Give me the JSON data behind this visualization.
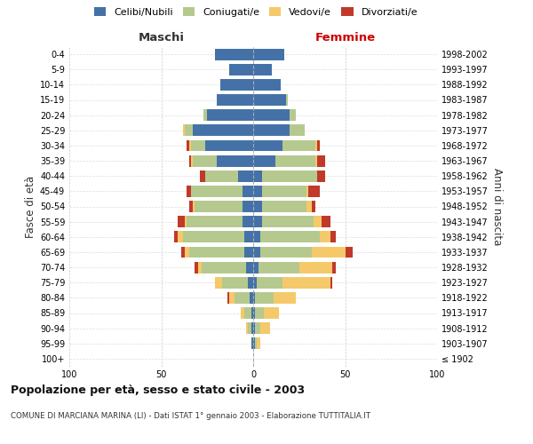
{
  "age_groups": [
    "100+",
    "95-99",
    "90-94",
    "85-89",
    "80-84",
    "75-79",
    "70-74",
    "65-69",
    "60-64",
    "55-59",
    "50-54",
    "45-49",
    "40-44",
    "35-39",
    "30-34",
    "25-29",
    "20-24",
    "15-19",
    "10-14",
    "5-9",
    "0-4"
  ],
  "birth_years": [
    "≤ 1902",
    "1903-1907",
    "1908-1912",
    "1913-1917",
    "1918-1922",
    "1923-1927",
    "1928-1932",
    "1933-1937",
    "1938-1942",
    "1943-1947",
    "1948-1952",
    "1953-1957",
    "1958-1962",
    "1963-1967",
    "1968-1972",
    "1973-1977",
    "1978-1982",
    "1983-1987",
    "1988-1992",
    "1993-1997",
    "1998-2002"
  ],
  "maschi": {
    "celibi": [
      0,
      1,
      1,
      1,
      2,
      3,
      4,
      5,
      5,
      6,
      6,
      6,
      8,
      20,
      26,
      33,
      25,
      20,
      18,
      13,
      21
    ],
    "coniugati": [
      0,
      0,
      2,
      4,
      8,
      14,
      24,
      30,
      33,
      30,
      26,
      28,
      18,
      13,
      8,
      4,
      2,
      0,
      0,
      0,
      0
    ],
    "vedovi": [
      0,
      0,
      1,
      2,
      3,
      4,
      2,
      2,
      3,
      1,
      1,
      0,
      0,
      1,
      1,
      1,
      0,
      0,
      0,
      0,
      0
    ],
    "divorziati": [
      0,
      0,
      0,
      0,
      1,
      0,
      2,
      2,
      2,
      4,
      2,
      2,
      3,
      1,
      1,
      0,
      0,
      0,
      0,
      0,
      0
    ]
  },
  "femmine": {
    "nubili": [
      0,
      1,
      1,
      1,
      1,
      2,
      3,
      4,
      4,
      5,
      5,
      5,
      5,
      12,
      16,
      20,
      20,
      18,
      15,
      10,
      17
    ],
    "coniugate": [
      0,
      1,
      3,
      5,
      10,
      14,
      22,
      28,
      32,
      28,
      24,
      24,
      30,
      22,
      18,
      8,
      3,
      1,
      0,
      0,
      0
    ],
    "vedove": [
      0,
      2,
      5,
      8,
      12,
      26,
      18,
      18,
      6,
      4,
      3,
      1,
      0,
      1,
      1,
      0,
      0,
      0,
      0,
      0,
      0
    ],
    "divorziate": [
      0,
      0,
      0,
      0,
      0,
      1,
      2,
      4,
      3,
      5,
      2,
      6,
      4,
      4,
      1,
      0,
      0,
      0,
      0,
      0,
      0
    ]
  },
  "colors": {
    "celibi_nubili": "#4472a8",
    "coniugati": "#b5c98e",
    "vedovi": "#f5c96a",
    "divorziati": "#c0392b"
  },
  "xlim": 100,
  "title": "Popolazione per età, sesso e stato civile - 2003",
  "subtitle": "COMUNE DI MARCIANA MARINA (LI) - Dati ISTAT 1° gennaio 2003 - Elaborazione TUTTITALIA.IT",
  "ylabel_left": "Fasce di età",
  "ylabel_right": "Anni di nascita",
  "xlabel_left": "Maschi",
  "xlabel_right": "Femmine",
  "background_color": "#ffffff",
  "legend_labels": [
    "Celibi/Nubili",
    "Coniugati/e",
    "Vedovi/e",
    "Divorziati/e"
  ]
}
